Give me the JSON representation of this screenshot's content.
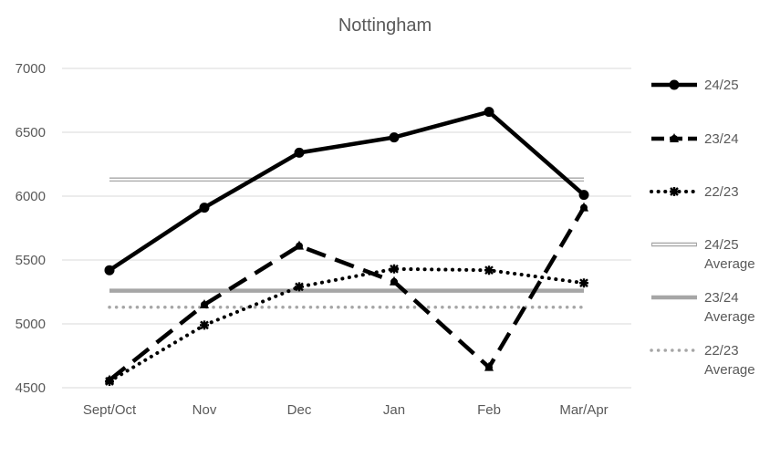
{
  "chart_data": {
    "type": "line",
    "title": "Nottingham",
    "xlabel": "",
    "ylabel": "",
    "categories": [
      "Sept/Oct",
      "Nov",
      "Dec",
      "Jan",
      "Feb",
      "Mar/Apr"
    ],
    "ylim": [
      4500,
      7000
    ],
    "yticks": [
      4500,
      5000,
      5500,
      6000,
      6500,
      7000
    ],
    "grid": true,
    "legend_position": "right",
    "series": [
      {
        "name": "24/25",
        "values": [
          5420,
          5910,
          6340,
          6460,
          6660,
          6010
        ],
        "style": "solid",
        "color": "#000000"
      },
      {
        "name": "23/24",
        "values": [
          4560,
          5150,
          5610,
          5330,
          4660,
          5910
        ],
        "style": "dashed",
        "color": "#000000"
      },
      {
        "name": "22/23",
        "values": [
          4550,
          4990,
          5290,
          5430,
          5420,
          5320
        ],
        "style": "dotted",
        "color": "#000000"
      },
      {
        "name": "24/25 Average",
        "values": [
          6130,
          6130,
          6130,
          6130,
          6130,
          6130
        ],
        "style": "double",
        "color": "#a6a6a6"
      },
      {
        "name": "23/24 Average",
        "values": [
          5260,
          5260,
          5260,
          5260,
          5260,
          5260
        ],
        "style": "thick",
        "color": "#a6a6a6"
      },
      {
        "name": "22/23 Average",
        "values": [
          5130,
          5130,
          5130,
          5130,
          5130,
          5130
        ],
        "style": "dotted",
        "color": "#a6a6a6"
      }
    ]
  }
}
